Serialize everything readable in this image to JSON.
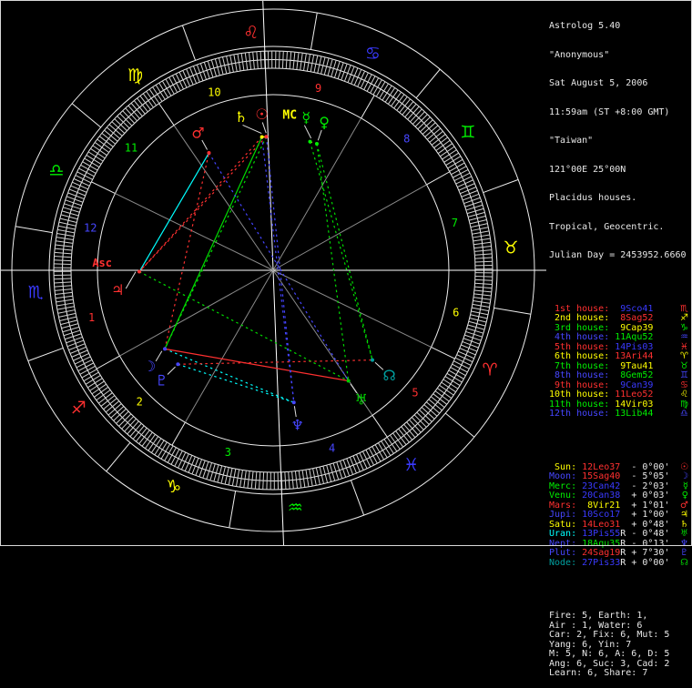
{
  "app": {
    "title": "Astrolog 5.40"
  },
  "header": {
    "lines": [
      "Astrolog 5.40",
      "\"Anonymous\"",
      "Sat August 5, 2006",
      "11:59am (ST +8:00 GMT)",
      "\"Taiwan\"",
      "121°00E 25°00N",
      "Placidus houses.",
      "Tropical, Geocentric.",
      "Julian Day = 2453952.6660"
    ]
  },
  "colors": {
    "background": "#000000",
    "text": "#e8e8e8",
    "line_bright": "#ededed",
    "line_dim": "#8a8a8a",
    "house_number_cycle": [
      "#ff3030",
      "#ffff00",
      "#00ee00",
      "#4646ff"
    ]
  },
  "chart_data": {
    "type": "astrology-wheel",
    "orientation": "ascendant-left",
    "element_colors": {
      "fire": "#ff3030",
      "earth": "#ffff00",
      "air": "#00ee00",
      "water": "#3a3aff"
    },
    "signs": [
      {
        "name": "Ari",
        "glyph": "♈",
        "element": "fire"
      },
      {
        "name": "Tau",
        "glyph": "♉",
        "element": "earth"
      },
      {
        "name": "Gem",
        "glyph": "♊",
        "element": "air"
      },
      {
        "name": "Can",
        "glyph": "♋",
        "element": "water"
      },
      {
        "name": "Leo",
        "glyph": "♌",
        "element": "fire"
      },
      {
        "name": "Vir",
        "glyph": "♍",
        "element": "earth"
      },
      {
        "name": "Lib",
        "glyph": "♎",
        "element": "air"
      },
      {
        "name": "Sco",
        "glyph": "♏",
        "element": "water"
      },
      {
        "name": "Sag",
        "glyph": "♐",
        "element": "fire"
      },
      {
        "name": "Cap",
        "glyph": "♑",
        "element": "earth"
      },
      {
        "name": "Aqu",
        "glyph": "♒",
        "element": "air"
      },
      {
        "name": "Pis",
        "glyph": "♓",
        "element": "water"
      }
    ],
    "houses": [
      {
        "ord": "1st",
        "cusp": "9Sco41",
        "sign": "Sco",
        "lon": 219.683
      },
      {
        "ord": "2nd",
        "cusp": "8Sag52",
        "sign": "Sag",
        "lon": 248.867
      },
      {
        "ord": "3rd",
        "cusp": "9Cap39",
        "sign": "Cap",
        "lon": 279.65
      },
      {
        "ord": "4th",
        "cusp": "11Aqu52",
        "sign": "Aqu",
        "lon": 311.867
      },
      {
        "ord": "5th",
        "cusp": "14Pis03",
        "sign": "Pis",
        "lon": 344.05
      },
      {
        "ord": "6th",
        "cusp": "13Ari44",
        "sign": "Ari",
        "lon": 13.733
      },
      {
        "ord": "7th",
        "cusp": "9Tau41",
        "sign": "Tau",
        "lon": 39.683
      },
      {
        "ord": "8th",
        "cusp": "8Gem52",
        "sign": "Gem",
        "lon": 68.867
      },
      {
        "ord": "9th",
        "cusp": "9Can39",
        "sign": "Can",
        "lon": 99.65
      },
      {
        "ord": "10th",
        "cusp": "11Leo52",
        "sign": "Leo",
        "lon": 131.867
      },
      {
        "ord": "11th",
        "cusp": "14Vir03",
        "sign": "Vir",
        "lon": 164.05
      },
      {
        "ord": "12th",
        "cusp": "13Lib44",
        "sign": "Lib",
        "lon": 193.733
      }
    ],
    "planets": [
      {
        "name": "Sun",
        "pos": "12Leo37",
        "sign": "Leo",
        "retro": false,
        "vel": "- 0°00'",
        "lon": 132.617,
        "glyph": "☉",
        "color": "#ffff00",
        "glyph_color": "#ff3030",
        "wheel_color": "#ff3030"
      },
      {
        "name": "Moon",
        "pos": "15Sag40",
        "sign": "Sag",
        "retro": false,
        "vel": "- 5°05'",
        "lon": 255.667,
        "glyph": "☽",
        "color": "#4646ff",
        "glyph_color": "#4646ff",
        "wheel_color": "#4646ff"
      },
      {
        "name": "Merc",
        "pos": "23Can42",
        "sign": "Can",
        "retro": false,
        "vel": "- 2°03'",
        "lon": 113.7,
        "glyph": "☿",
        "color": "#00ee00",
        "glyph_color": "#00ee00",
        "wheel_color": "#00ee00"
      },
      {
        "name": "Venu",
        "pos": "20Can38",
        "sign": "Can",
        "retro": false,
        "vel": "+ 0°03'",
        "lon": 110.633,
        "glyph": "♀",
        "color": "#00ee00",
        "glyph_color": "#00ee00",
        "wheel_color": "#00ee00"
      },
      {
        "name": "Mars",
        "pos": "8Vir21",
        "sign": "Vir",
        "retro": false,
        "vel": "+ 1°01'",
        "lon": 158.35,
        "glyph": "♂",
        "color": "#ff3030",
        "glyph_color": "#ff3030",
        "wheel_color": "#ff3030"
      },
      {
        "name": "Jupi",
        "pos": "10Sco17",
        "sign": "Sco",
        "retro": false,
        "vel": "+ 1°00'",
        "lon": 220.283,
        "glyph": "♃",
        "color": "#4646ff",
        "glyph_color": "#ffff00",
        "wheel_color": "#ff3030"
      },
      {
        "name": "Satu",
        "pos": "14Leo31",
        "sign": "Leo",
        "retro": false,
        "vel": "+ 0°48'",
        "lon": 134.517,
        "glyph": "♄",
        "color": "#ffff00",
        "glyph_color": "#ffff00",
        "wheel_color": "#ffff00"
      },
      {
        "name": "Uran",
        "pos": "13Pis55",
        "sign": "Pis",
        "retro": true,
        "vel": "- 0°48'",
        "lon": 343.917,
        "glyph": "♅",
        "color": "#00ffff",
        "glyph_color": "#00cc00",
        "wheel_color": "#00cc00"
      },
      {
        "name": "Nept",
        "pos": "18Aqu35",
        "sign": "Aqu",
        "retro": true,
        "vel": "- 0°13'",
        "lon": 318.583,
        "glyph": "♆",
        "color": "#4646ff",
        "glyph_color": "#4646ff",
        "wheel_color": "#4646ff"
      },
      {
        "name": "Plut",
        "pos": "24Sag19",
        "sign": "Sag",
        "retro": true,
        "vel": "+ 7°30'",
        "lon": 264.317,
        "glyph": "♇",
        "color": "#4646ff",
        "glyph_color": "#4646ff",
        "wheel_color": "#4646ff"
      },
      {
        "name": "Node",
        "pos": "27Pis33",
        "sign": "Pis",
        "retro": true,
        "vel": "+ 0°00'",
        "lon": 357.55,
        "glyph": "☊",
        "color": "#00a0a0",
        "glyph_color": "#00cc00",
        "wheel_color": "#00a0a0"
      }
    ],
    "angles": [
      {
        "name": "MC",
        "label": "MC",
        "lon": 131.867,
        "color": "#ffff00"
      },
      {
        "name": "Asc",
        "label": "Asc",
        "lon": 219.683,
        "color": "#ff3030"
      }
    ],
    "aspect_colors": {
      "con": "#ffff00",
      "sex": "#00ffff",
      "squ": "#ff3030",
      "tri": "#00dd00",
      "opp": "#4444ff"
    },
    "aspects": [
      {
        "a": "Sun",
        "b": "Satu",
        "type": "con"
      },
      {
        "a": "Merc",
        "b": "Venu",
        "type": "con"
      },
      {
        "a": "Mars",
        "b": "Jupi",
        "type": "sex"
      },
      {
        "a": "Moon",
        "b": "Nept",
        "type": "sex"
      },
      {
        "a": "Plut",
        "b": "Nept",
        "type": "sex"
      },
      {
        "a": "Sun",
        "b": "Jupi",
        "type": "squ"
      },
      {
        "a": "Satu",
        "b": "Jupi",
        "type": "squ"
      },
      {
        "a": "Moon",
        "b": "Mars",
        "type": "squ"
      },
      {
        "a": "Moon",
        "b": "Uran",
        "type": "squ"
      },
      {
        "a": "Plut",
        "b": "Node",
        "type": "squ"
      },
      {
        "a": "Sun",
        "b": "Moon",
        "type": "tri"
      },
      {
        "a": "Moon",
        "b": "Satu",
        "type": "tri"
      },
      {
        "a": "Venu",
        "b": "Uran",
        "type": "tri"
      },
      {
        "a": "Merc",
        "b": "Node",
        "type": "tri"
      },
      {
        "a": "Venu",
        "b": "Node",
        "type": "tri"
      },
      {
        "a": "Jupi",
        "b": "Uran",
        "type": "tri"
      },
      {
        "a": "Sun",
        "b": "Nept",
        "type": "opp"
      },
      {
        "a": "Satu",
        "b": "Nept",
        "type": "opp"
      },
      {
        "a": "Mars",
        "b": "Uran",
        "type": "opp"
      }
    ]
  },
  "stats": {
    "lines": [
      "Fire: 5, Earth: 1,",
      "Air : 1, Water: 6",
      "Car: 2, Fix: 6, Mut: 5",
      "Yang: 6, Yin: 7",
      "M: 5, N: 6, A: 6, D: 5",
      "Ang: 6, Suc: 3, Cad: 2",
      "Learn: 6, Share: 7"
    ]
  }
}
